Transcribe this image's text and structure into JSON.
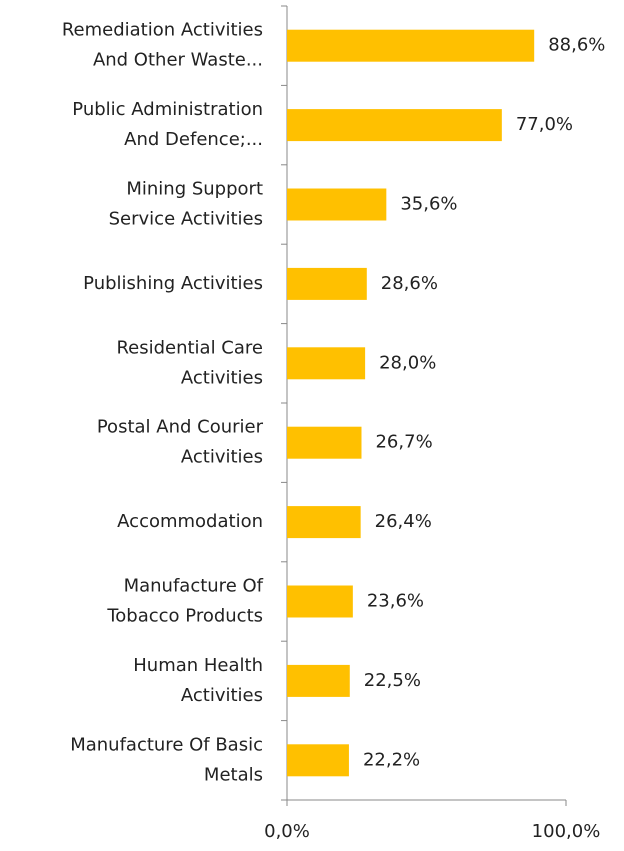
{
  "chart_data": {
    "type": "bar",
    "orientation": "horizontal",
    "categories": [
      "Remediation Activities\nAnd Other Waste...",
      "Public Administration\nAnd Defence;...",
      "Mining Support\nService Activities",
      "Publishing Activities",
      "Residential Care\nActivities",
      "Postal And Courier\nActivities",
      "Accommodation",
      "Manufacture Of\nTobacco Products",
      "Human Health\nActivities",
      "Manufacture Of Basic\nMetals"
    ],
    "values": [
      88.6,
      77.0,
      35.6,
      28.6,
      28.0,
      26.7,
      26.4,
      23.6,
      22.5,
      22.2
    ],
    "value_labels": [
      "88,6%",
      "77,0%",
      "35,6%",
      "28,6%",
      "28,0%",
      "26,7%",
      "26,4%",
      "23,6%",
      "22,5%",
      "22,2%"
    ],
    "color": "#ffc000",
    "xlim": [
      0,
      100
    ],
    "xticks": [
      {
        "value": 0,
        "label": "0,0%"
      },
      {
        "value": 100,
        "label": "100,0%"
      }
    ]
  }
}
